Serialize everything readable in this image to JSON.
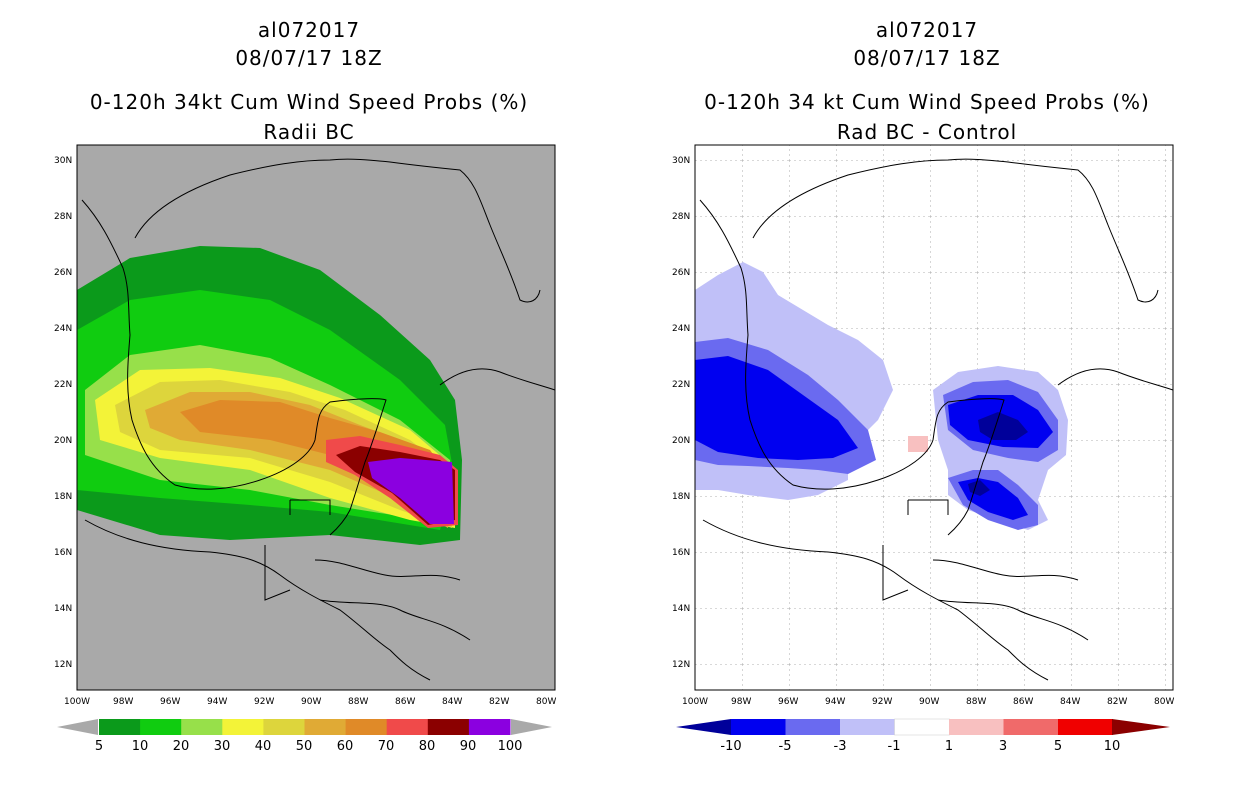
{
  "left": {
    "storm_id": "al072017",
    "datetime": "08/07/17 18Z",
    "title": "0-120h 34kt Cum Wind Speed Probs (%)",
    "subtitle": "Radii BC",
    "colorbar": {
      "labels": [
        "5",
        "10",
        "20",
        "30",
        "40",
        "50",
        "60",
        "70",
        "80",
        "90",
        "100"
      ],
      "colors": [
        "#0b9a1b",
        "#10cc10",
        "#97e04a",
        "#f3f338",
        "#ddd53c",
        "#e0aa35",
        "#e08a28",
        "#f04a4a",
        "#8b0000",
        "#8b00e0"
      ]
    }
  },
  "right": {
    "storm_id": "al072017",
    "datetime": "08/07/17 18Z",
    "title": "0-120h 34 kt Cum Wind Speed Probs (%)",
    "subtitle": "Rad BC - Control",
    "colorbar": {
      "labels": [
        "-10",
        "-5",
        "-3",
        "-1",
        "1",
        "3",
        "5",
        "10"
      ],
      "colors": [
        "#00009a",
        "#0000f0",
        "#6a6af0",
        "#c0c0f8",
        "#ffffff",
        "#f8c0c0",
        "#f06a6a",
        "#f00000",
        "#8b0000"
      ]
    }
  },
  "axes": {
    "lat_labels": [
      "30N",
      "28N",
      "26N",
      "24N",
      "22N",
      "20N",
      "18N",
      "16N",
      "14N",
      "12N"
    ],
    "lon_labels": [
      "100W",
      "98W",
      "96W",
      "94W",
      "92W",
      "90W",
      "88W",
      "86W",
      "84W",
      "82W",
      "80W"
    ]
  }
}
